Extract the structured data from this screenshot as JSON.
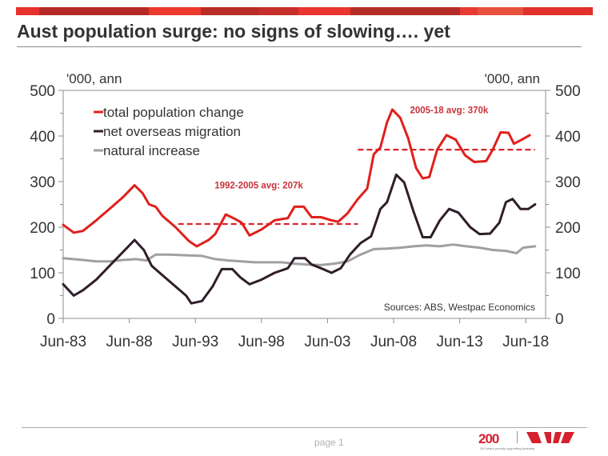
{
  "header": {
    "band_colors": [
      "#e8312f",
      "#b52a26",
      "#ec3a2e",
      "#b82d25",
      "#c62f2a",
      "#e8352f",
      "#b42c26",
      "#e53b33",
      "#e9513f",
      "#e0302c"
    ],
    "title": "Aust population surge: no signs of slowing…. yet"
  },
  "footer": {
    "page_label": "page 1",
    "logo_text": "200",
    "logo_tagline": "200 years proudly supporting Australia",
    "brand_color": "#d5202e"
  },
  "chart_data": {
    "type": "line",
    "title": "Aust population surge: no signs of slowing…. yet",
    "ylabel_left": "'000, ann",
    "ylabel_right": "'000, ann",
    "xlabel": "",
    "xlim": [
      1983.5,
      2020.0
    ],
    "ylim": [
      0,
      500
    ],
    "yticks": [
      0,
      100,
      200,
      300,
      400,
      500
    ],
    "ytick_labels": [
      "0",
      "100",
      "200",
      "300",
      "400",
      "500"
    ],
    "xticks": [
      1983.5,
      1988.5,
      1993.5,
      1998.5,
      2003.5,
      2008.5,
      2013.5,
      2018.5
    ],
    "xtick_labels": [
      "Jun-83",
      "Jun-88",
      "Jun-93",
      "Jun-98",
      "Jun-03",
      "Jun-08",
      "Jun-13",
      "Jun-18"
    ],
    "grid": false,
    "legend_position": "top-left",
    "source_note": "Sources: ABS, Westpac Economics",
    "series": [
      {
        "name": "total population change",
        "color": "#e0201c",
        "points": [
          [
            1983.5,
            205
          ],
          [
            1984.3,
            188
          ],
          [
            1985,
            192
          ],
          [
            1986,
            215
          ],
          [
            1987,
            240
          ],
          [
            1988,
            265
          ],
          [
            1988.9,
            292
          ],
          [
            1989.5,
            275
          ],
          [
            1990,
            250
          ],
          [
            1990.5,
            245
          ],
          [
            1991,
            225
          ],
          [
            1992,
            200
          ],
          [
            1993,
            170
          ],
          [
            1993.6,
            158
          ],
          [
            1994.5,
            172
          ],
          [
            1995,
            185
          ],
          [
            1995.8,
            228
          ],
          [
            1996.5,
            218
          ],
          [
            1997,
            210
          ],
          [
            1997.6,
            182
          ],
          [
            1998.5,
            195
          ],
          [
            1999.5,
            215
          ],
          [
            2000.5,
            220
          ],
          [
            2001,
            245
          ],
          [
            2001.7,
            245
          ],
          [
            2002.3,
            222
          ],
          [
            2003,
            222
          ],
          [
            2003.8,
            215
          ],
          [
            2004.3,
            212
          ],
          [
            2005,
            230
          ],
          [
            2005.8,
            262
          ],
          [
            2006.5,
            285
          ],
          [
            2007,
            360
          ],
          [
            2007.5,
            375
          ],
          [
            2008,
            430
          ],
          [
            2008.4,
            458
          ],
          [
            2009,
            440
          ],
          [
            2009.6,
            395
          ],
          [
            2010.2,
            330
          ],
          [
            2010.7,
            307
          ],
          [
            2011.2,
            310
          ],
          [
            2011.8,
            370
          ],
          [
            2012.5,
            402
          ],
          [
            2013.2,
            392
          ],
          [
            2013.9,
            358
          ],
          [
            2014.6,
            343
          ],
          [
            2015.5,
            345
          ],
          [
            2016,
            370
          ],
          [
            2016.6,
            408
          ],
          [
            2017.2,
            407
          ],
          [
            2017.6,
            383
          ],
          [
            2018.2,
            392
          ],
          [
            2018.8,
            402
          ]
        ]
      },
      {
        "name": "net overseas migration",
        "color": "#2f1e2a",
        "points": [
          [
            1983.5,
            75
          ],
          [
            1984.3,
            50
          ],
          [
            1985,
            62
          ],
          [
            1986,
            85
          ],
          [
            1987,
            115
          ],
          [
            1988,
            145
          ],
          [
            1988.9,
            172
          ],
          [
            1989.6,
            150
          ],
          [
            1990.2,
            115
          ],
          [
            1991,
            95
          ],
          [
            1992,
            70
          ],
          [
            1992.8,
            50
          ],
          [
            1993.2,
            33
          ],
          [
            1994,
            38
          ],
          [
            1994.8,
            70
          ],
          [
            1995.5,
            108
          ],
          [
            1996.3,
            108
          ],
          [
            1996.9,
            90
          ],
          [
            1997.6,
            75
          ],
          [
            1998.5,
            85
          ],
          [
            1999.5,
            100
          ],
          [
            2000.5,
            110
          ],
          [
            2001,
            132
          ],
          [
            2001.8,
            132
          ],
          [
            2002.3,
            118
          ],
          [
            2003,
            110
          ],
          [
            2003.8,
            100
          ],
          [
            2004.5,
            110
          ],
          [
            2005.2,
            140
          ],
          [
            2006,
            165
          ],
          [
            2006.8,
            180
          ],
          [
            2007.5,
            240
          ],
          [
            2008,
            255
          ],
          [
            2008.7,
            315
          ],
          [
            2009.3,
            298
          ],
          [
            2010,
            235
          ],
          [
            2010.7,
            178
          ],
          [
            2011.3,
            178
          ],
          [
            2012,
            215
          ],
          [
            2012.7,
            240
          ],
          [
            2013.4,
            232
          ],
          [
            2014.3,
            200
          ],
          [
            2015,
            185
          ],
          [
            2015.8,
            186
          ],
          [
            2016.5,
            210
          ],
          [
            2017,
            255
          ],
          [
            2017.5,
            262
          ],
          [
            2018.1,
            240
          ],
          [
            2018.7,
            240
          ],
          [
            2019.2,
            250
          ]
        ]
      },
      {
        "name": "natural increase",
        "color": "#a0a0a0",
        "points": [
          [
            1983.5,
            132
          ],
          [
            1985,
            128
          ],
          [
            1986,
            125
          ],
          [
            1987,
            125
          ],
          [
            1988,
            128
          ],
          [
            1989,
            130
          ],
          [
            1989.8,
            127
          ],
          [
            1990.5,
            140
          ],
          [
            1991.5,
            140
          ],
          [
            1993,
            138
          ],
          [
            1994,
            137
          ],
          [
            1995,
            130
          ],
          [
            1996,
            127
          ],
          [
            1997,
            125
          ],
          [
            1998,
            123
          ],
          [
            2000,
            123
          ],
          [
            2001,
            120
          ],
          [
            2002,
            118
          ],
          [
            2003,
            117
          ],
          [
            2004,
            120
          ],
          [
            2005,
            125
          ],
          [
            2006,
            140
          ],
          [
            2007,
            152
          ],
          [
            2008,
            153
          ],
          [
            2009,
            155
          ],
          [
            2010,
            158
          ],
          [
            2011,
            160
          ],
          [
            2012,
            158
          ],
          [
            2013,
            162
          ],
          [
            2014,
            158
          ],
          [
            2015,
            155
          ],
          [
            2016,
            150
          ],
          [
            2017,
            148
          ],
          [
            2017.8,
            143
          ],
          [
            2018.3,
            155
          ],
          [
            2019.2,
            158
          ]
        ]
      }
    ],
    "reference_lines": [
      {
        "name": "1992-2005 average",
        "label": "1992-2005 avg: 207k",
        "value": 207,
        "x_from": 1992.2,
        "x_to": 2005.8,
        "color": "#d9262b",
        "label_x": 1998.3,
        "label_y": 285
      },
      {
        "name": "2005-18 average",
        "label": "2005-18 avg: 370k",
        "value": 370,
        "x_from": 2005.8,
        "x_to": 2019.2,
        "color": "#d9262b",
        "label_x": 2012.7,
        "label_y": 450
      }
    ]
  }
}
